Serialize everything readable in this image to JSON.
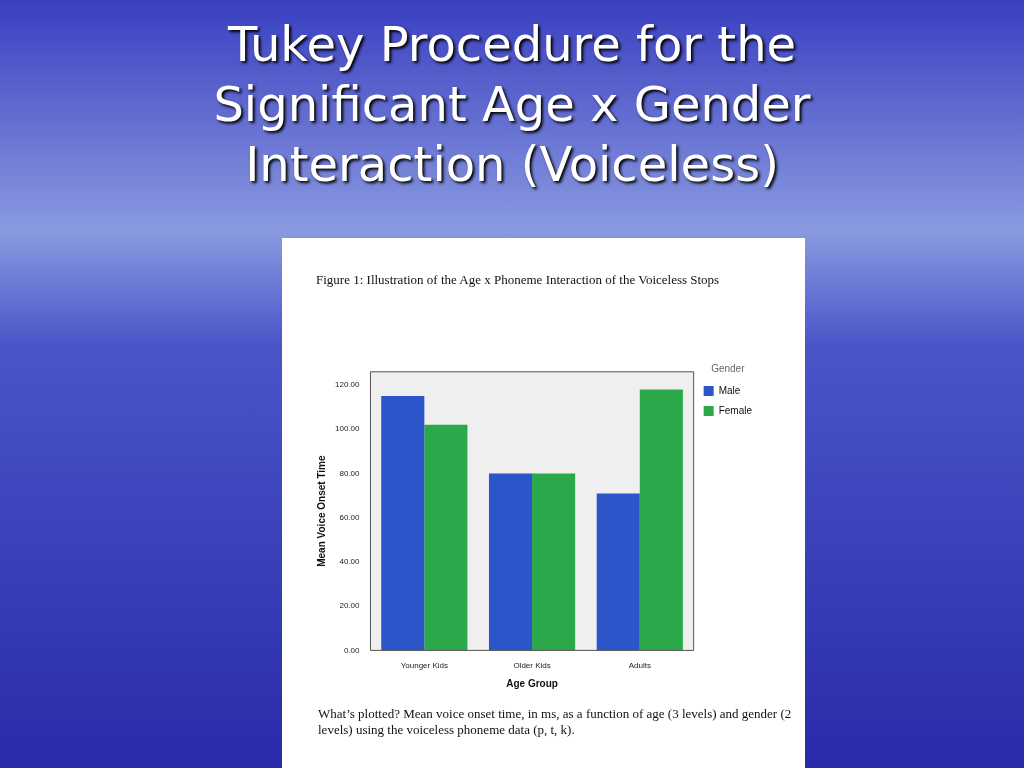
{
  "chart_data": {
    "type": "bar",
    "title": "Tukey Procedure for the Significant Age x Gender Interaction (Voiceless)",
    "subtitle": "Figure 1:  Illustration of the Age x Phoneme Interaction of the Voiceless Stops",
    "xlabel": "Age Group",
    "ylabel": "Mean Voice Onset Time",
    "legend_title": "Gender",
    "categories": [
      "Younger Kids",
      "Older Kids",
      "Adults"
    ],
    "series": [
      {
        "name": "Male",
        "color": "#2b55c8",
        "values": [
          115,
          80,
          71
        ]
      },
      {
        "name": "Female",
        "color": "#2aa84a",
        "values": [
          102,
          80,
          118
        ]
      }
    ],
    "ylim": [
      0,
      126
    ],
    "yticks": [
      {
        "value": 0,
        "label": "0.00"
      },
      {
        "value": 20,
        "label": "20.00"
      },
      {
        "value": 40,
        "label": "40.00"
      },
      {
        "value": 60,
        "label": "60.00"
      },
      {
        "value": 80,
        "label": "80.00"
      },
      {
        "value": 100,
        "label": "100.00"
      },
      {
        "value": 120,
        "label": "120.00"
      }
    ],
    "grid": false,
    "legend": "top right",
    "annotations": [
      "What’s plotted?  Mean voice onset time, in ms, as a function of age (3 levels) and gender (2 levels) using the voiceless phoneme data (p, t, k)."
    ]
  }
}
